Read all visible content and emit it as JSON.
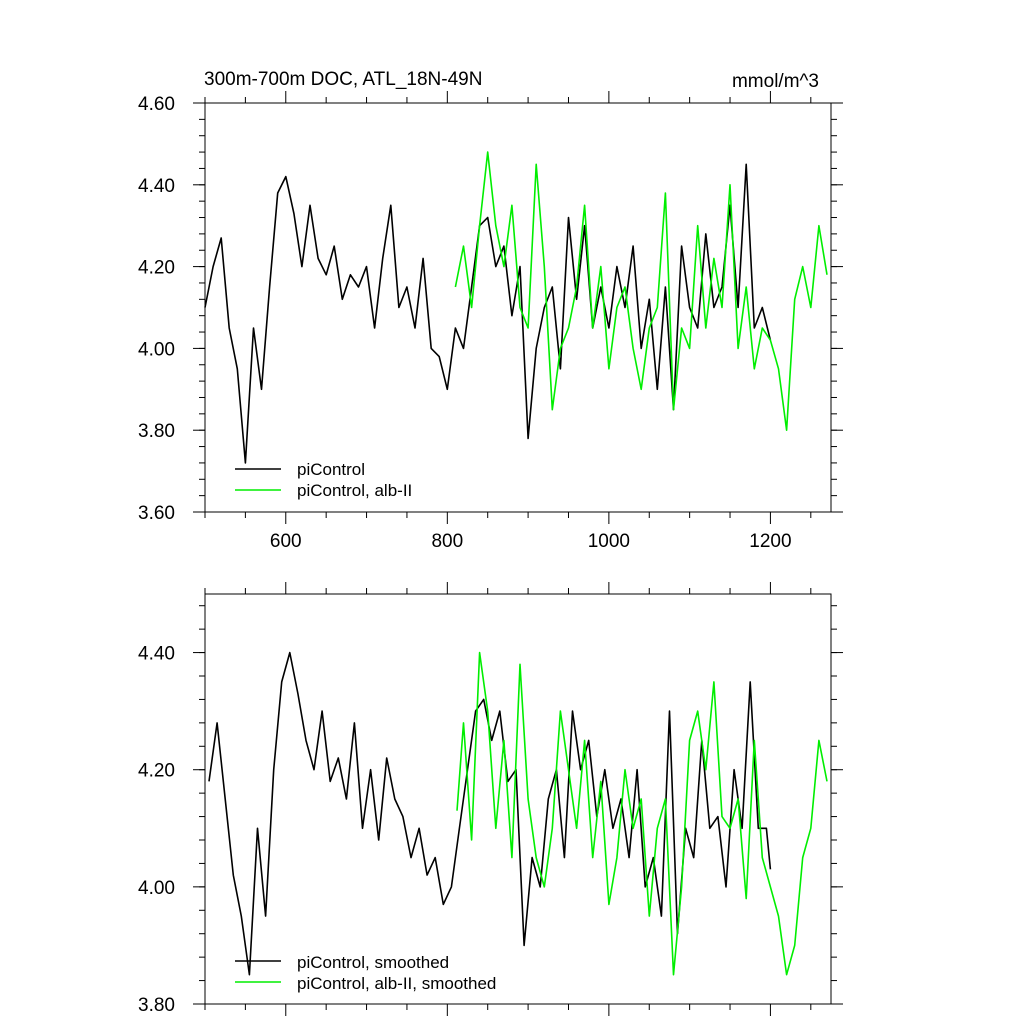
{
  "chart_data": [
    {
      "type": "line",
      "title": "300m-700m DOC, ATL_18N-49N",
      "units": "mmol/m^3",
      "xlim": [
        500,
        1275
      ],
      "ylim": [
        3.6,
        4.6
      ],
      "xticks": [
        600,
        800,
        1000,
        1200
      ],
      "xtick_labels": [
        "600",
        "800",
        "1000",
        "1200"
      ],
      "yticks": [
        3.6,
        3.8,
        4.0,
        4.2,
        4.4,
        4.6
      ],
      "ytick_labels": [
        "3.60",
        "3.80",
        "4.00",
        "4.20",
        "4.40",
        "4.60"
      ],
      "grid": false,
      "legend_position": "bottom-left",
      "series": [
        {
          "name": "piControl",
          "color": "#000000",
          "x": [
            500,
            510,
            520,
            530,
            540,
            550,
            560,
            570,
            580,
            590,
            600,
            610,
            620,
            630,
            640,
            650,
            660,
            670,
            680,
            690,
            700,
            710,
            720,
            730,
            740,
            750,
            760,
            770,
            780,
            790,
            800,
            810,
            820,
            830,
            840,
            850,
            860,
            870,
            880,
            890,
            900,
            910,
            920,
            930,
            940,
            950,
            960,
            970,
            980,
            990,
            1000,
            1010,
            1020,
            1030,
            1040,
            1050,
            1060,
            1070,
            1080,
            1090,
            1100,
            1110,
            1120,
            1130,
            1140,
            1150,
            1160,
            1170,
            1180,
            1190,
            1200
          ],
          "y": [
            4.1,
            4.2,
            4.27,
            4.05,
            3.95,
            3.72,
            4.05,
            3.9,
            4.15,
            4.38,
            4.42,
            4.33,
            4.2,
            4.35,
            4.22,
            4.18,
            4.25,
            4.12,
            4.18,
            4.15,
            4.2,
            4.05,
            4.22,
            4.35,
            4.1,
            4.15,
            4.05,
            4.22,
            4.0,
            3.98,
            3.9,
            4.05,
            4.0,
            4.15,
            4.3,
            4.32,
            4.2,
            4.25,
            4.08,
            4.2,
            3.78,
            4.0,
            4.1,
            4.15,
            3.95,
            4.32,
            4.12,
            4.3,
            4.05,
            4.15,
            4.05,
            4.2,
            4.1,
            4.25,
            4.0,
            4.12,
            3.9,
            4.15,
            3.85,
            4.25,
            4.1,
            4.05,
            4.28,
            4.1,
            4.15,
            4.35,
            4.1,
            4.45,
            4.05,
            4.1,
            4.02
          ]
        },
        {
          "name": "piControl, alb-II",
          "color": "#00ee00",
          "x": [
            810,
            820,
            830,
            840,
            850,
            860,
            870,
            880,
            890,
            900,
            910,
            920,
            930,
            940,
            950,
            960,
            970,
            980,
            990,
            1000,
            1010,
            1020,
            1030,
            1040,
            1050,
            1060,
            1070,
            1080,
            1090,
            1100,
            1110,
            1120,
            1130,
            1140,
            1150,
            1160,
            1170,
            1180,
            1190,
            1200,
            1210,
            1220,
            1230,
            1240,
            1250,
            1260,
            1270
          ],
          "y": [
            4.15,
            4.25,
            4.1,
            4.3,
            4.48,
            4.3,
            4.2,
            4.35,
            4.1,
            4.05,
            4.45,
            4.2,
            3.85,
            4.0,
            4.05,
            4.15,
            4.35,
            4.05,
            4.2,
            3.95,
            4.1,
            4.15,
            4.0,
            3.9,
            4.05,
            4.1,
            4.38,
            3.85,
            4.05,
            4.0,
            4.3,
            4.05,
            4.22,
            4.1,
            4.4,
            4.0,
            4.15,
            3.95,
            4.05,
            4.02,
            3.95,
            3.8,
            4.12,
            4.2,
            4.1,
            4.3,
            4.18
          ]
        }
      ]
    },
    {
      "type": "line",
      "xlim": [
        500,
        1275
      ],
      "ylim": [
        3.8,
        4.5
      ],
      "xticks": [
        600,
        800,
        1000,
        1200
      ],
      "yticks": [
        3.8,
        4.0,
        4.2,
        4.4
      ],
      "ytick_labels": [
        "3.80",
        "4.00",
        "4.20",
        "4.40"
      ],
      "grid": false,
      "legend_position": "bottom-left",
      "series": [
        {
          "name": "piControl, smoothed",
          "color": "#000000",
          "x": [
            505,
            515,
            525,
            535,
            545,
            555,
            565,
            575,
            585,
            595,
            605,
            615,
            625,
            635,
            645,
            655,
            665,
            675,
            685,
            695,
            705,
            715,
            725,
            735,
            745,
            755,
            765,
            775,
            785,
            795,
            805,
            815,
            825,
            835,
            845,
            855,
            865,
            875,
            885,
            895,
            905,
            915,
            925,
            935,
            945,
            955,
            965,
            975,
            985,
            995,
            1005,
            1015,
            1025,
            1035,
            1045,
            1055,
            1065,
            1075,
            1085,
            1095,
            1105,
            1115,
            1125,
            1135,
            1145,
            1155,
            1165,
            1175,
            1185,
            1195,
            1200
          ],
          "y": [
            4.18,
            4.28,
            4.15,
            4.02,
            3.95,
            3.85,
            4.1,
            3.95,
            4.2,
            4.35,
            4.4,
            4.33,
            4.25,
            4.2,
            4.3,
            4.18,
            4.22,
            4.15,
            4.28,
            4.1,
            4.2,
            4.08,
            4.22,
            4.15,
            4.12,
            4.05,
            4.1,
            4.02,
            4.05,
            3.97,
            4.0,
            4.1,
            4.2,
            4.3,
            4.32,
            4.25,
            4.3,
            4.18,
            4.2,
            3.9,
            4.05,
            4.0,
            4.15,
            4.2,
            4.05,
            4.3,
            4.2,
            4.25,
            4.12,
            4.2,
            4.1,
            4.15,
            4.05,
            4.2,
            4.0,
            4.05,
            3.95,
            4.3,
            3.92,
            4.1,
            4.05,
            4.25,
            4.1,
            4.12,
            4.0,
            4.2,
            4.1,
            4.35,
            4.1,
            4.1,
            4.03
          ]
        },
        {
          "name": "piControl, alb-II, smoothed",
          "color": "#00ee00",
          "x": [
            812,
            820,
            830,
            840,
            850,
            860,
            870,
            880,
            890,
            900,
            910,
            920,
            930,
            940,
            950,
            960,
            970,
            980,
            990,
            1000,
            1010,
            1020,
            1030,
            1040,
            1050,
            1060,
            1070,
            1080,
            1090,
            1100,
            1110,
            1120,
            1130,
            1140,
            1150,
            1160,
            1170,
            1180,
            1190,
            1200,
            1210,
            1220,
            1230,
            1240,
            1250,
            1260,
            1270
          ],
          "y": [
            4.13,
            4.28,
            4.08,
            4.4,
            4.3,
            4.1,
            4.25,
            4.05,
            4.38,
            4.15,
            4.05,
            4.0,
            4.1,
            4.3,
            4.2,
            4.1,
            4.25,
            4.05,
            4.18,
            3.97,
            4.05,
            4.2,
            4.1,
            4.15,
            3.95,
            4.1,
            4.15,
            3.85,
            4.0,
            4.25,
            4.3,
            4.2,
            4.35,
            4.12,
            4.1,
            4.15,
            3.98,
            4.25,
            4.05,
            4.0,
            3.95,
            3.85,
            3.9,
            4.05,
            4.1,
            4.25,
            4.18
          ]
        }
      ]
    }
  ]
}
